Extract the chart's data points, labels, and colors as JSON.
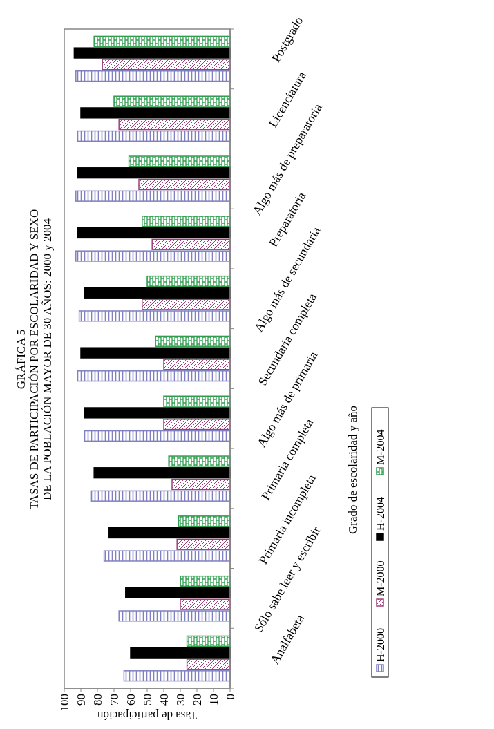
{
  "chart_data": {
    "type": "bar",
    "orientation": "horizontal",
    "title": "GRÁFICA 5\nTASAS DE PARTICIPACIÓN  POR ESCOLARIDAD Y SEXO\nDE LA POBLACIÓN MAYOR DE 30 AÑOS: 2000 y 2004",
    "xlabel": "Tasa de participación",
    "ylabel": "Grado de escolaridad y año",
    "categories": [
      "Postgrado",
      "Licenciatura",
      "Algo más de preparatoria",
      "Preparatoria",
      "Algo más de secundaria",
      "Secundaria completa",
      "Algo más de primaria",
      "Primaria completa",
      "Primaria incompleta",
      "Sólo sabe leer y escribir",
      "Analfabeta"
    ],
    "series": [
      {
        "name": "H-2000",
        "color": "#8080c0",
        "values": [
          93,
          92,
          93,
          93,
          91,
          92,
          88,
          84,
          76,
          67,
          64
        ]
      },
      {
        "name": "M-2000",
        "color": "#a0407a",
        "values": [
          77,
          67,
          55,
          47,
          53,
          40,
          40,
          35,
          32,
          30,
          26
        ]
      },
      {
        "name": "H-2004",
        "color": "#000000",
        "values": [
          94,
          90,
          92,
          92,
          88,
          90,
          88,
          82,
          73,
          63,
          60
        ]
      },
      {
        "name": "M-2004",
        "color": "#2e9e4e",
        "values": [
          82,
          70,
          61,
          53,
          50,
          45,
          40,
          37,
          31,
          30,
          26
        ]
      }
    ],
    "xlim": [
      100,
      0
    ],
    "xticks": [
      100,
      90,
      80,
      70,
      60,
      50,
      40,
      30,
      20,
      10,
      0
    ],
    "grid": false,
    "legend": "bottom"
  }
}
